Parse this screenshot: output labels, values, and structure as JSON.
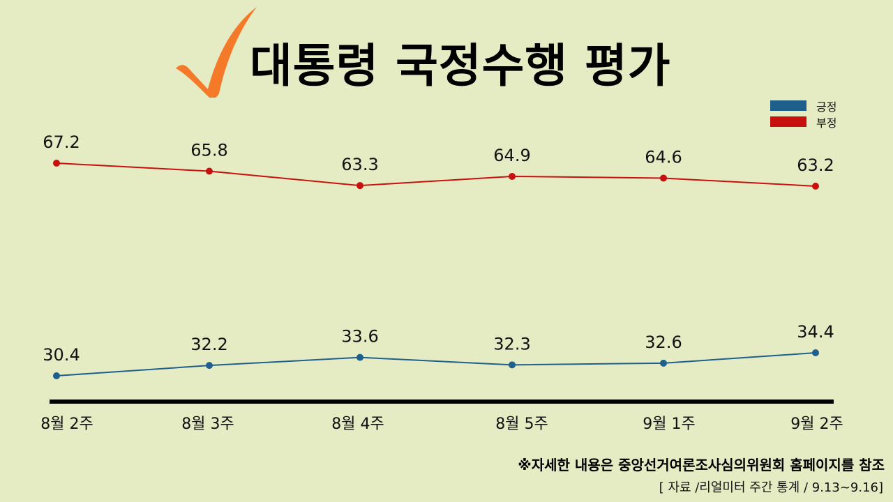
{
  "header": {
    "title": "대통령 국정수행 평가",
    "icon": "checkmark-icon",
    "icon_color": "#f47a2a"
  },
  "legend": {
    "items": [
      {
        "label": "긍정",
        "color": "#1f5f8b"
      },
      {
        "label": "부정",
        "color": "#c8100f"
      }
    ]
  },
  "footer": {
    "note": "※자세한 내용은 중앙선거여론조사심의위원회 홈페이지를 참조",
    "source": "[ 자료 /리얼미터 주간 통계 / 9.13~9.16]"
  },
  "chart_data": {
    "type": "line",
    "title": "대통령 국정수행 평가",
    "xlabel": "",
    "ylabel": "",
    "categories": [
      "8월 2주",
      "8월 3주",
      "8월 4주",
      "8월 5주",
      "9월 1주",
      "9월 2주"
    ],
    "series": [
      {
        "name": "긍정",
        "color": "#1f5f8b",
        "values": [
          30.4,
          32.2,
          33.6,
          32.3,
          32.6,
          34.4
        ]
      },
      {
        "name": "부정",
        "color": "#c8100f",
        "values": [
          67.2,
          65.8,
          63.3,
          64.9,
          64.6,
          63.2
        ]
      }
    ],
    "grid": false,
    "legend_position": "top-right",
    "data_labels": true
  }
}
